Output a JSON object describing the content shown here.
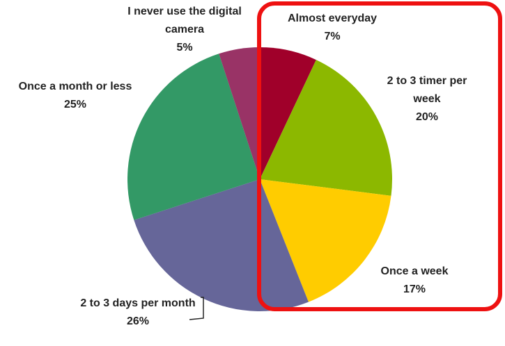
{
  "chart_data": {
    "type": "pie",
    "categories": [
      "Almost everyday",
      "2 to 3 timer per week",
      "Once a week",
      "2 to 3 days per month",
      "Once a month or less",
      "I never use the digital camera"
    ],
    "values": [
      7,
      20,
      17,
      26,
      25,
      5
    ],
    "value_labels": [
      "7%",
      "20%",
      "17%",
      "26%",
      "25%",
      "5%"
    ],
    "colors": [
      "#a0002a",
      "#8cb800",
      "#ffcc00",
      "#666699",
      "#339966",
      "#993366"
    ]
  }
}
